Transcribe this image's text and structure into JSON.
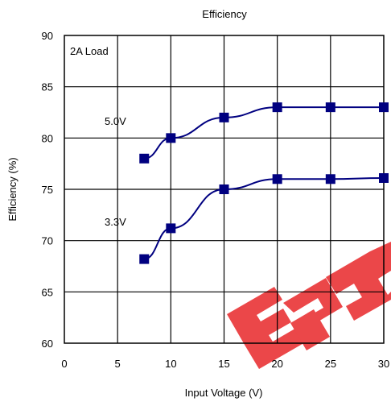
{
  "chart_data": {
    "type": "line",
    "title": "Efficiency",
    "xlabel": "Input Voltage (V)",
    "ylabel": "Efficiency (%)",
    "xlim": [
      0,
      30
    ],
    "ylim": [
      60,
      90
    ],
    "xticks": [
      0,
      5,
      10,
      15,
      20,
      25,
      30
    ],
    "yticks": [
      60,
      65,
      70,
      75,
      80,
      85,
      90
    ],
    "grid": true,
    "annotation": "2A Load",
    "series": [
      {
        "name": "5.0V",
        "color": "#000080",
        "x": [
          7.5,
          10,
          15,
          20,
          25,
          30
        ],
        "y": [
          78,
          80,
          82,
          83,
          83,
          83
        ]
      },
      {
        "name": "3.3V",
        "color": "#000080",
        "x": [
          7.5,
          10,
          15,
          20,
          25,
          30
        ],
        "y": [
          68.2,
          71.2,
          75,
          76,
          76,
          76.1
        ]
      }
    ]
  },
  "watermark": {
    "name": "watermark-logo",
    "color": "#e52222"
  }
}
